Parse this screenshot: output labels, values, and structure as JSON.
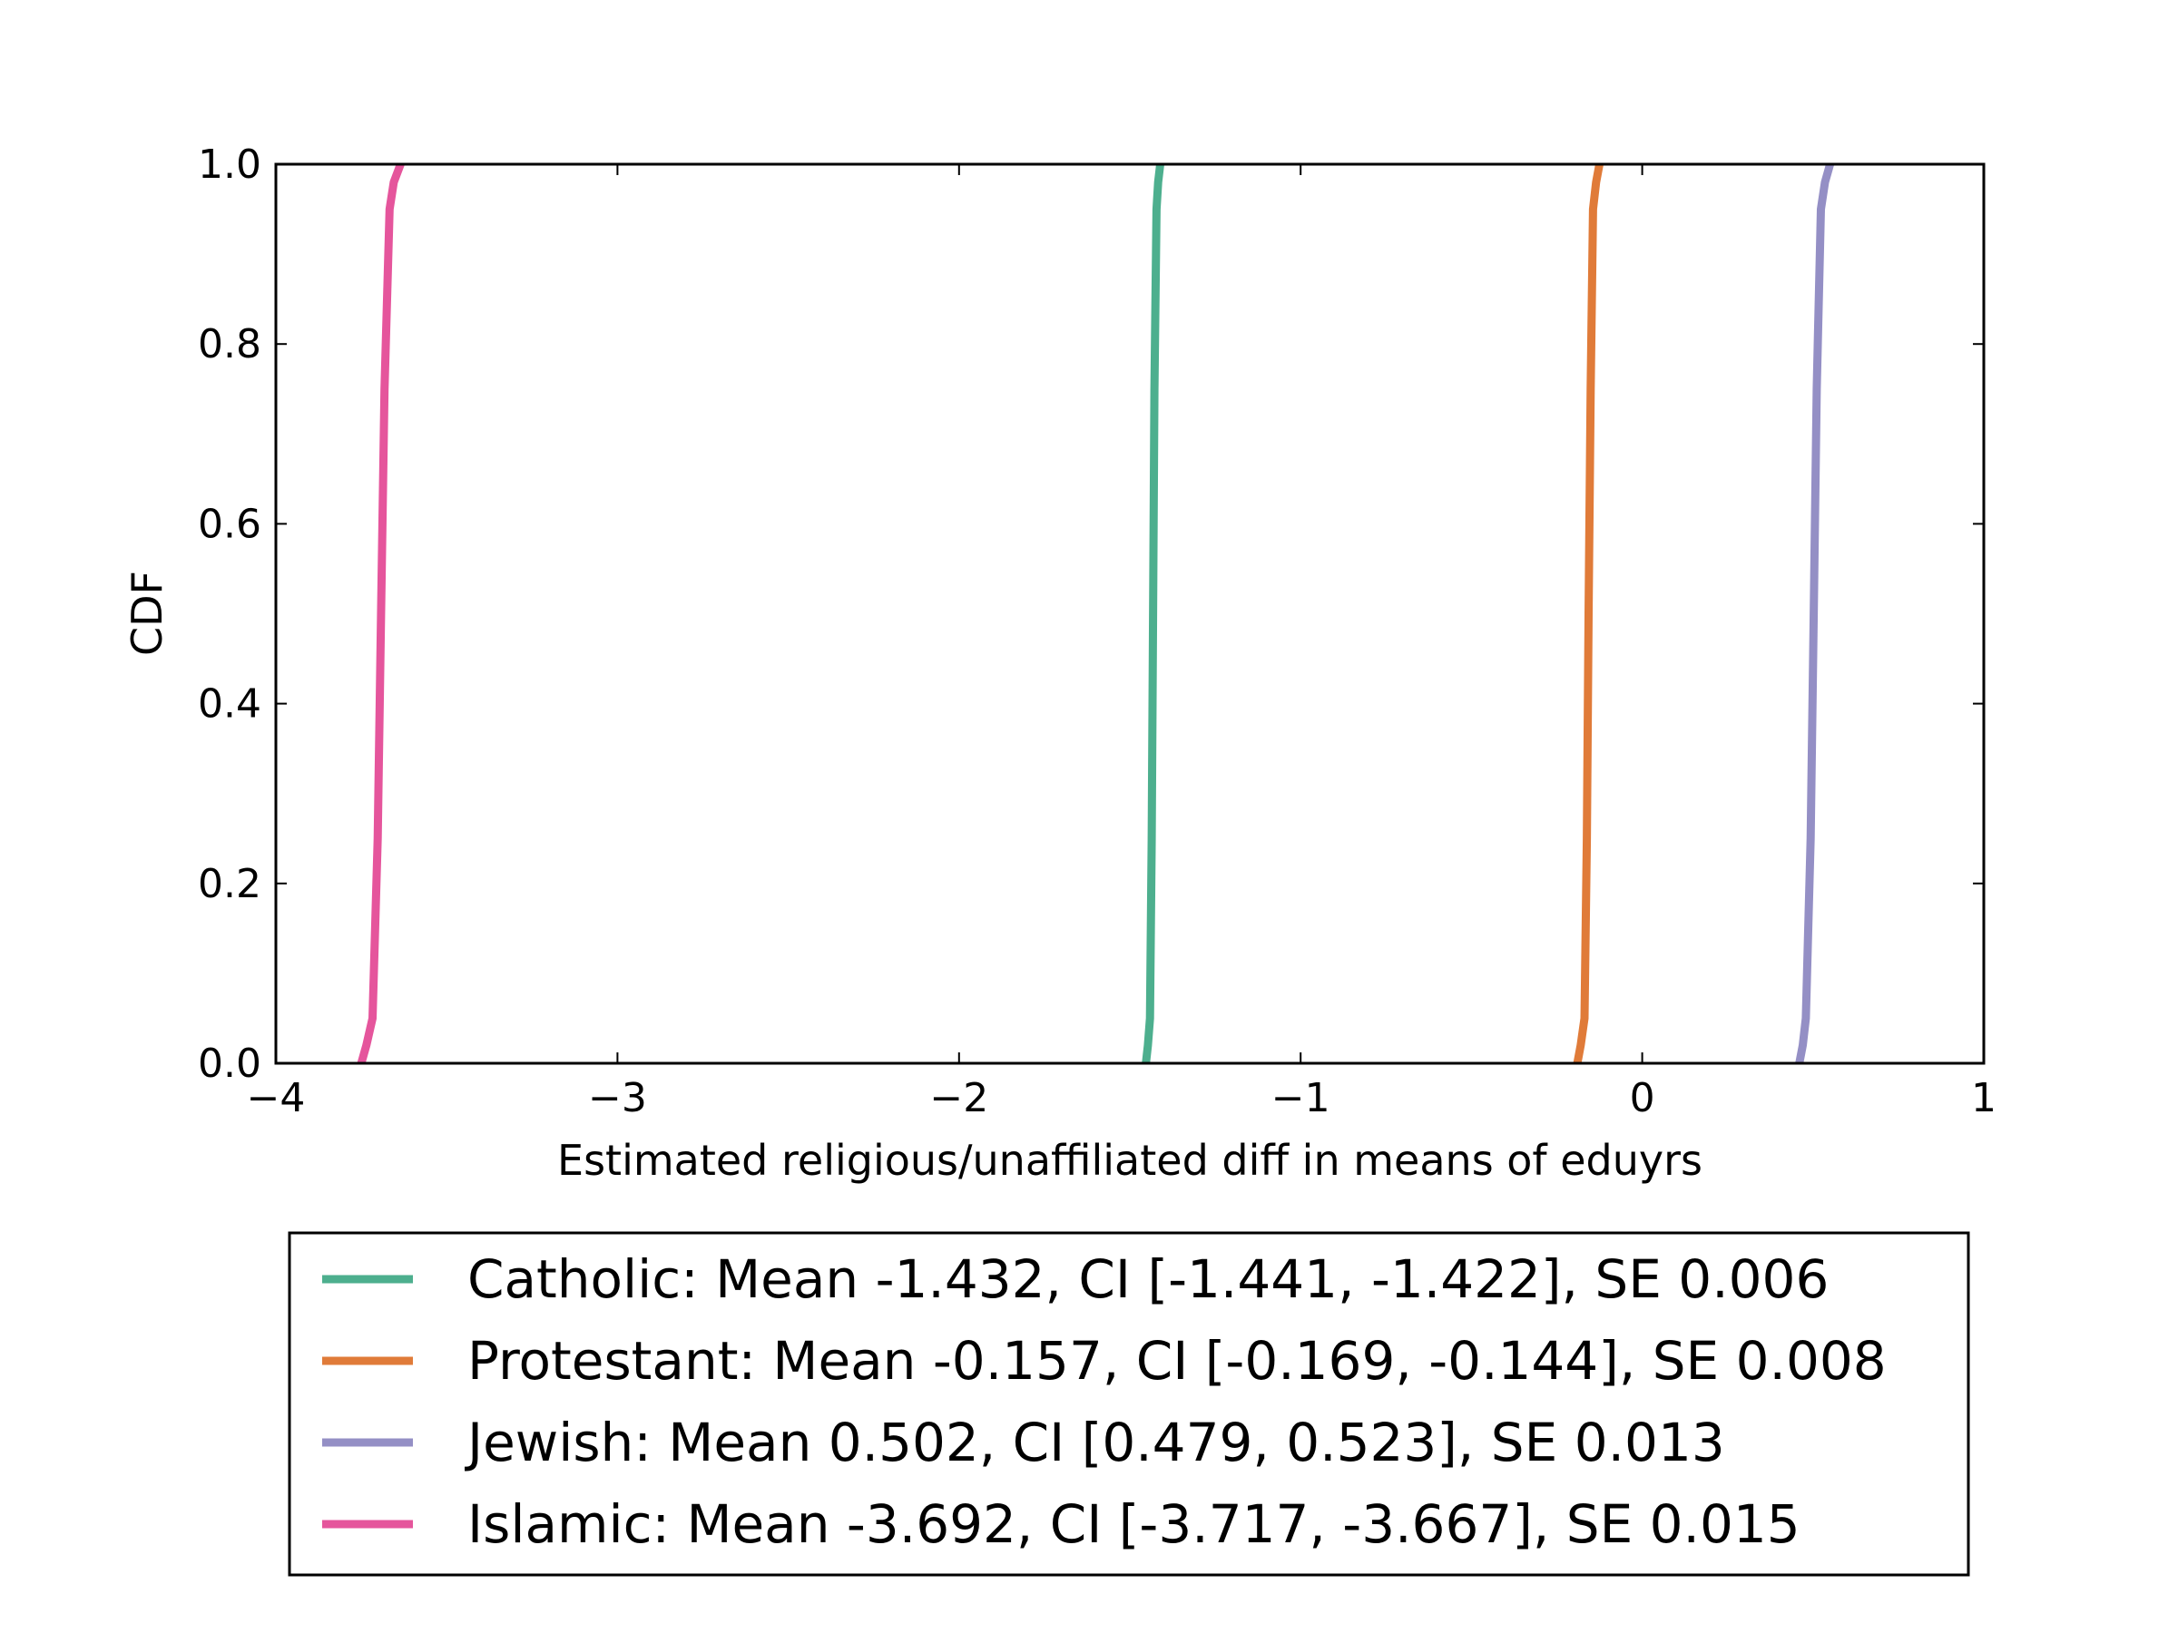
{
  "chart_data": {
    "type": "line",
    "title": "",
    "xlabel": "Estimated religious/unaffiliated diff in means of eduyrs",
    "ylabel": "CDF",
    "xlim": [
      -4,
      1
    ],
    "ylim": [
      0,
      1
    ],
    "xticks": [
      -4,
      -3,
      -2,
      -1,
      0,
      1
    ],
    "xtick_labels": [
      "−4",
      "−3",
      "−2",
      "−1",
      "0",
      "1"
    ],
    "yticks": [
      0,
      0.2,
      0.4,
      0.6,
      0.8,
      1.0
    ],
    "ytick_labels": [
      "0.0",
      "0.2",
      "0.4",
      "0.6",
      "0.8",
      "1.0"
    ],
    "grid": false,
    "legend_position": "below plot",
    "series": [
      {
        "name": "Catholic: Mean -1.432, CI [-1.441, -1.422], SE 0.006",
        "color": "#4daf8e",
        "x": [
          -1.453,
          -1.447,
          -1.441,
          -1.436,
          -1.432,
          -1.428,
          -1.422,
          -1.417,
          -1.411
        ],
        "y": [
          0.0,
          0.02,
          0.05,
          0.25,
          0.5,
          0.75,
          0.95,
          0.98,
          1.0
        ]
      },
      {
        "name": "Protestant: Mean -0.157, CI [-0.169, -0.144], SE 0.008",
        "color": "#e07b39",
        "x": [
          -0.19,
          -0.18,
          -0.169,
          -0.162,
          -0.157,
          -0.151,
          -0.144,
          -0.135,
          -0.125
        ],
        "y": [
          0.0,
          0.02,
          0.05,
          0.25,
          0.5,
          0.75,
          0.95,
          0.98,
          1.0
        ]
      },
      {
        "name": "Jewish: Mean 0.502, CI [0.479, 0.523], SE 0.013",
        "color": "#948fc5",
        "x": [
          0.46,
          0.47,
          0.479,
          0.493,
          0.502,
          0.511,
          0.523,
          0.535,
          0.55
        ],
        "y": [
          0.0,
          0.02,
          0.05,
          0.25,
          0.5,
          0.75,
          0.95,
          0.98,
          1.0
        ]
      },
      {
        "name": "Islamic: Mean -3.692, CI [-3.717, -3.667], SE 0.015",
        "color": "#e5559c",
        "x": [
          -3.75,
          -3.735,
          -3.717,
          -3.702,
          -3.692,
          -3.682,
          -3.667,
          -3.655,
          -3.635
        ],
        "y": [
          0.0,
          0.02,
          0.05,
          0.25,
          0.5,
          0.75,
          0.95,
          0.98,
          1.0
        ]
      }
    ]
  }
}
